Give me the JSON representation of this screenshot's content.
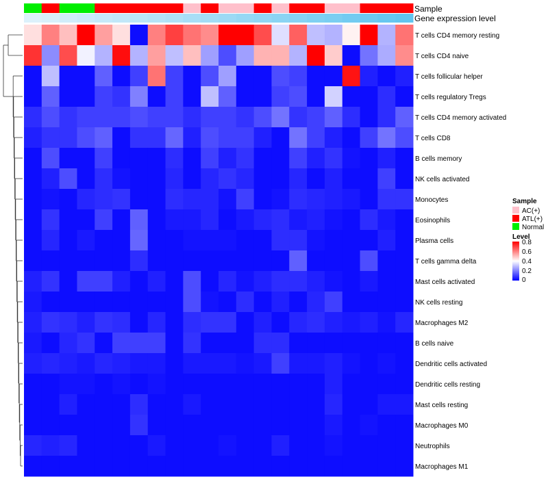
{
  "chart_data": {
    "type": "heatmap",
    "title": "",
    "annotation_tracks": [
      "Sample",
      "Gene expression level"
    ],
    "sample_groups": [
      "Normal",
      "ATL(+)",
      "Normal",
      "Normal",
      "ATL(+)",
      "ATL(+)",
      "ATL(+)",
      "ATL(+)",
      "ATL(+)",
      "AC(+)",
      "ATL(+)",
      "AC(+)",
      "AC(+)",
      "ATL(+)",
      "AC(+)",
      "ATL(+)",
      "ATL(+)",
      "AC(+)",
      "AC(+)",
      "ATL(+)",
      "ATL(+)",
      "ATL(+)"
    ],
    "gene_expression_level": [
      0.02,
      0.05,
      0.1,
      0.14,
      0.18,
      0.22,
      0.27,
      0.31,
      0.35,
      0.4,
      0.44,
      0.48,
      0.53,
      0.57,
      0.61,
      0.65,
      0.7,
      0.74,
      0.79,
      0.83,
      0.88,
      0.92
    ],
    "rows": [
      "T cells CD4 memory resting",
      "T cells CD4 naive",
      "T cells follicular helper",
      "T cells regulatory  Tregs",
      "T cells CD4 memory activated",
      "T cells CD8",
      "B cells memory",
      "NK cells activated",
      "Monocytes",
      "Eosinophils",
      "Plasma cells",
      "T cells gamma delta",
      "Mast cells activated",
      "NK cells resting",
      "Macrophages M2",
      "B cells naive",
      "Dendritic cells activated",
      "Dendritic cells resting",
      "Mast cells resting",
      "Macrophages M0",
      "Neutrophils",
      "Macrophages M1"
    ],
    "values": [
      [
        0.45,
        0.6,
        0.5,
        0.8,
        0.55,
        0.45,
        0.02,
        0.6,
        0.7,
        0.62,
        0.58,
        0.8,
        0.8,
        0.68,
        0.35,
        0.65,
        0.3,
        0.28,
        0.42,
        0.8,
        0.28,
        0.62
      ],
      [
        0.72,
        0.22,
        0.68,
        0.38,
        0.28,
        0.78,
        0.28,
        0.55,
        0.3,
        0.5,
        0.25,
        0.12,
        0.25,
        0.52,
        0.52,
        0.28,
        0.8,
        0.48,
        0.02,
        0.18,
        0.27,
        0.58
      ],
      [
        0.02,
        0.3,
        0.02,
        0.02,
        0.15,
        0.02,
        0.1,
        0.62,
        0.1,
        0.02,
        0.12,
        0.25,
        0.02,
        0.02,
        0.12,
        0.1,
        0.02,
        0.02,
        0.77,
        0.05,
        0.02,
        0.05
      ],
      [
        0.02,
        0.15,
        0.02,
        0.02,
        0.1,
        0.08,
        0.2,
        0.02,
        0.1,
        0.02,
        0.3,
        0.15,
        0.02,
        0.02,
        0.1,
        0.12,
        0.02,
        0.33,
        0.02,
        0.02,
        0.07,
        0.02
      ],
      [
        0.07,
        0.12,
        0.08,
        0.1,
        0.1,
        0.1,
        0.12,
        0.1,
        0.1,
        0.07,
        0.1,
        0.1,
        0.08,
        0.12,
        0.18,
        0.08,
        0.1,
        0.15,
        0.07,
        0.02,
        0.07,
        0.15
      ],
      [
        0.05,
        0.08,
        0.08,
        0.12,
        0.15,
        0.02,
        0.08,
        0.08,
        0.16,
        0.05,
        0.12,
        0.1,
        0.1,
        0.05,
        0.02,
        0.18,
        0.1,
        0.05,
        0.02,
        0.1,
        0.18,
        0.12
      ],
      [
        0.02,
        0.12,
        0.02,
        0.02,
        0.1,
        0.02,
        0.02,
        0.02,
        0.07,
        0.02,
        0.1,
        0.05,
        0.08,
        0.02,
        0.02,
        0.1,
        0.05,
        0.08,
        0.03,
        0.02,
        0.05,
        0.02
      ],
      [
        0.02,
        0.05,
        0.12,
        0.02,
        0.07,
        0.03,
        0.02,
        0.02,
        0.06,
        0.02,
        0.06,
        0.08,
        0.06,
        0.02,
        0.02,
        0.06,
        0.02,
        0.05,
        0.02,
        0.02,
        0.1,
        0.02
      ],
      [
        0.02,
        0.03,
        0.02,
        0.06,
        0.07,
        0.08,
        0.02,
        0.02,
        0.07,
        0.06,
        0.06,
        0.03,
        0.1,
        0.02,
        0.03,
        0.07,
        0.06,
        0.05,
        0.04,
        0.02,
        0.08,
        0.08
      ],
      [
        0.02,
        0.08,
        0.02,
        0.02,
        0.1,
        0.02,
        0.15,
        0.02,
        0.04,
        0.04,
        0.06,
        0.02,
        0.04,
        0.06,
        0.07,
        0.04,
        0.05,
        0.03,
        0.02,
        0.07,
        0.04,
        0.02
      ],
      [
        0.02,
        0.06,
        0.02,
        0.04,
        0.02,
        0.02,
        0.16,
        0.02,
        0.02,
        0.03,
        0.03,
        0.03,
        0.02,
        0.02,
        0.07,
        0.07,
        0.03,
        0.02,
        0.02,
        0.02,
        0.05,
        0.02
      ],
      [
        0.02,
        0.02,
        0.02,
        0.02,
        0.02,
        0.02,
        0.07,
        0.02,
        0.02,
        0.02,
        0.02,
        0.02,
        0.02,
        0.02,
        0.02,
        0.15,
        0.02,
        0.02,
        0.02,
        0.12,
        0.02,
        0.02
      ],
      [
        0.05,
        0.08,
        0.02,
        0.1,
        0.1,
        0.05,
        0.02,
        0.05,
        0.02,
        0.12,
        0.02,
        0.06,
        0.03,
        0.05,
        0.07,
        0.07,
        0.05,
        0.03,
        0.02,
        0.04,
        0.02,
        0.02
      ],
      [
        0.04,
        0.02,
        0.02,
        0.02,
        0.02,
        0.02,
        0.02,
        0.02,
        0.02,
        0.12,
        0.03,
        0.02,
        0.07,
        0.02,
        0.05,
        0.02,
        0.06,
        0.1,
        0.02,
        0.02,
        0.02,
        0.02
      ],
      [
        0.05,
        0.08,
        0.07,
        0.05,
        0.08,
        0.07,
        0.02,
        0.06,
        0.02,
        0.07,
        0.08,
        0.08,
        0.02,
        0.05,
        0.02,
        0.06,
        0.07,
        0.05,
        0.04,
        0.05,
        0.03,
        0.06
      ],
      [
        0.04,
        0.02,
        0.06,
        0.08,
        0.02,
        0.1,
        0.1,
        0.1,
        0.02,
        0.08,
        0.02,
        0.02,
        0.02,
        0.07,
        0.07,
        0.02,
        0.02,
        0.02,
        0.02,
        0.02,
        0.02,
        0.02
      ],
      [
        0.05,
        0.06,
        0.05,
        0.04,
        0.06,
        0.05,
        0.04,
        0.04,
        0.02,
        0.04,
        0.04,
        0.04,
        0.03,
        0.04,
        0.1,
        0.04,
        0.04,
        0.05,
        0.03,
        0.02,
        0.03,
        0.02
      ],
      [
        0.02,
        0.02,
        0.03,
        0.03,
        0.02,
        0.03,
        0.02,
        0.03,
        0.02,
        0.02,
        0.02,
        0.02,
        0.02,
        0.02,
        0.02,
        0.02,
        0.02,
        0.05,
        0.02,
        0.02,
        0.02,
        0.02
      ],
      [
        0.02,
        0.02,
        0.05,
        0.02,
        0.02,
        0.02,
        0.07,
        0.02,
        0.02,
        0.04,
        0.02,
        0.02,
        0.02,
        0.02,
        0.02,
        0.02,
        0.02,
        0.06,
        0.02,
        0.02,
        0.04,
        0.04
      ],
      [
        0.02,
        0.02,
        0.02,
        0.02,
        0.02,
        0.02,
        0.08,
        0.02,
        0.02,
        0.02,
        0.02,
        0.02,
        0.02,
        0.02,
        0.02,
        0.02,
        0.02,
        0.04,
        0.02,
        0.03,
        0.02,
        0.02
      ],
      [
        0.06,
        0.05,
        0.06,
        0.02,
        0.02,
        0.02,
        0.02,
        0.04,
        0.02,
        0.02,
        0.02,
        0.03,
        0.02,
        0.02,
        0.05,
        0.02,
        0.02,
        0.03,
        0.02,
        0.02,
        0.02,
        0.02
      ],
      [
        0.02,
        0.02,
        0.02,
        0.02,
        0.02,
        0.02,
        0.02,
        0.02,
        0.02,
        0.02,
        0.02,
        0.02,
        0.02,
        0.02,
        0.02,
        0.02,
        0.02,
        0.02,
        0.02,
        0.02,
        0.02,
        0.02
      ]
    ],
    "legend_sample": {
      "title": "Sample",
      "items": [
        {
          "label": "AC(+)",
          "color": "#ffc0cb"
        },
        {
          "label": "ATL(+)",
          "color": "#ff0000"
        },
        {
          "label": "Normal",
          "color": "#00ee00"
        }
      ]
    },
    "legend_level": {
      "title": "Level",
      "ticks": [
        "0.8",
        "0.6",
        "0.4",
        "0.2",
        "0"
      ],
      "range": [
        0,
        0.8
      ]
    },
    "colors": {
      "low": "#0000ff",
      "mid": "#ffffff",
      "high": "#ff0000",
      "gene_expr_low": "#dff2fb",
      "gene_expr_high": "#56c1ee"
    }
  }
}
